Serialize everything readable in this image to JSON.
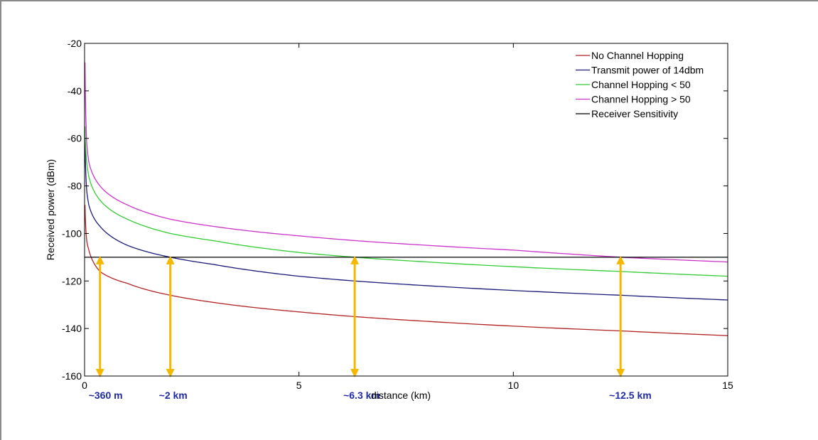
{
  "chart_data": {
    "type": "line",
    "xlabel": "distance (km)",
    "ylabel": "Received power (dBm)",
    "xlim": [
      0,
      15
    ],
    "ylim": [
      -160,
      -20
    ],
    "xticks": [
      0,
      5,
      10,
      15
    ],
    "yticks": [
      -20,
      -40,
      -60,
      -80,
      -100,
      -120,
      -140,
      -160
    ],
    "grid": false,
    "legend_position": "top-right",
    "series": [
      {
        "name": "No Channel Hopping",
        "color": "#b22222",
        "x": [
          0.01,
          0.05,
          0.1,
          0.36,
          1,
          2,
          3,
          5,
          6.3,
          8,
          10,
          12.5,
          15
        ],
        "y": [
          -88,
          -103,
          -107,
          -116,
          -121,
          -126,
          -129,
          -133,
          -135,
          -137,
          -139,
          -141,
          -143
        ]
      },
      {
        "name": "Transmit power of 14dbm",
        "color": "#1a1a7a",
        "x": [
          0.01,
          0.05,
          0.1,
          0.36,
          1,
          2,
          3,
          5,
          6.3,
          8,
          10,
          12.5,
          15
        ],
        "y": [
          -61,
          -82,
          -88,
          -97,
          -105,
          -110,
          -113,
          -118,
          -120,
          -122,
          -124,
          -126,
          -128
        ]
      },
      {
        "name": "Channel Hopping < 50",
        "color": "#33cc33",
        "x": [
          0.01,
          0.05,
          0.1,
          0.36,
          1,
          2,
          3,
          5,
          6.3,
          8,
          10,
          12.5,
          15
        ],
        "y": [
          -55,
          -70,
          -76,
          -86,
          -94,
          -100,
          -103,
          -108,
          -110,
          -112,
          -114,
          -116,
          -118
        ]
      },
      {
        "name": "Channel Hopping > 50",
        "color": "#cc33cc",
        "x": [
          0.01,
          0.05,
          0.1,
          0.36,
          1,
          2,
          3,
          5,
          6.3,
          8,
          10,
          12.5,
          15
        ],
        "y": [
          -28,
          -62,
          -70,
          -80,
          -88,
          -94,
          -97,
          -101,
          -103,
          -105,
          -107,
          -110,
          -112
        ]
      },
      {
        "name": "Receiver Sensitivity",
        "color": "#000000",
        "x": [
          0,
          15
        ],
        "y": [
          -110,
          -110
        ]
      }
    ],
    "annotations": [
      {
        "x": 0.36,
        "text": "~360 m"
      },
      {
        "x": 2,
        "text": "~2 km"
      },
      {
        "x": 6.3,
        "text": "~6.3 km"
      },
      {
        "x": 12.5,
        "text": "~12.5 km"
      }
    ],
    "annotation_color": "#f5b800"
  }
}
